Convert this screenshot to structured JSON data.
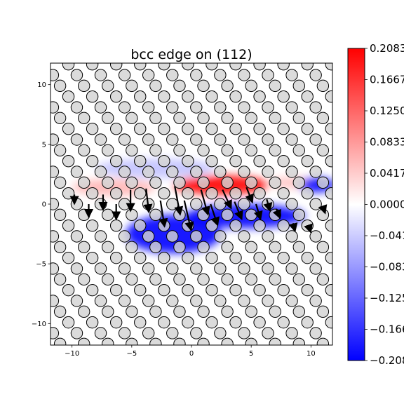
{
  "chart_data": {
    "type": "heatmap",
    "title": "bcc edge on (112)",
    "xlabel": "",
    "ylabel": "",
    "xlim": [
      -11.8,
      11.8
    ],
    "ylim": [
      -11.8,
      11.8
    ],
    "x_ticks": [
      -10,
      -5,
      0,
      5,
      10
    ],
    "y_ticks": [
      10,
      5,
      0,
      -5,
      -10
    ],
    "grid": false,
    "colormap": "bwr",
    "color_range": [
      -0.2083,
      0.2083
    ],
    "colorbar_ticks": [
      "0.2083",
      "0.1667",
      "0.1250",
      "0.0833",
      "0.0417",
      "0.0000",
      "-0.0417",
      "-0.0833",
      "-0.1250",
      "-0.1667",
      "-0.2083"
    ],
    "atoms": {
      "lattice_spacing_x": 2.0,
      "lattice_spacing_y": 0.9,
      "row_shift": 0.7,
      "fill": "#d3d3d3",
      "edge": "#000000"
    },
    "strain_regions": [
      {
        "x": 2.5,
        "y": 1.6,
        "rx": 4.0,
        "ry": 0.8,
        "value": 0.2083
      },
      {
        "x": -6.5,
        "y": 1.4,
        "rx": 3.5,
        "ry": 0.7,
        "value": 0.06
      },
      {
        "x": 8.5,
        "y": 1.8,
        "rx": 2.0,
        "ry": 0.5,
        "value": 0.05
      },
      {
        "x": 4.5,
        "y": -1.0,
        "rx": 5.0,
        "ry": 1.0,
        "value": -0.2083
      },
      {
        "x": -1.5,
        "y": -2.5,
        "rx": 4.0,
        "ry": 1.6,
        "value": -0.2083
      },
      {
        "x": 10.5,
        "y": 1.6,
        "rx": 1.5,
        "ry": 0.6,
        "value": -0.2083
      },
      {
        "x": -3.0,
        "y": 3.0,
        "rx": 5.0,
        "ry": 0.8,
        "value": -0.05
      }
    ],
    "displacement_arrows": [
      {
        "x": -9.8,
        "y": 0.8,
        "dx": 0.0,
        "dy": -0.5
      },
      {
        "x": -8.6,
        "y": 0.0,
        "dx": 0.0,
        "dy": -0.8
      },
      {
        "x": -7.4,
        "y": 0.8,
        "dx": 0.0,
        "dy": -1.0
      },
      {
        "x": -6.3,
        "y": 0.0,
        "dx": 0.0,
        "dy": -1.0
      },
      {
        "x": -5.1,
        "y": 1.2,
        "dx": 0.0,
        "dy": -1.5
      },
      {
        "x": -3.8,
        "y": 1.3,
        "dx": 0.2,
        "dy": -1.7
      },
      {
        "x": -2.6,
        "y": 0.3,
        "dx": 0.3,
        "dy": -1.9
      },
      {
        "x": -1.4,
        "y": 1.5,
        "dx": 0.4,
        "dy": -2.1
      },
      {
        "x": -0.6,
        "y": 0.3,
        "dx": 0.5,
        "dy": -2.2
      },
      {
        "x": 0.8,
        "y": 1.2,
        "dx": 0.5,
        "dy": -1.8
      },
      {
        "x": 1.6,
        "y": 0.0,
        "dx": 0.5,
        "dy": -1.5
      },
      {
        "x": 2.6,
        "y": 1.2,
        "dx": 0.6,
        "dy": -1.3
      },
      {
        "x": 3.6,
        "y": 0.2,
        "dx": 0.5,
        "dy": -1.2
      },
      {
        "x": 4.6,
        "y": 1.4,
        "dx": 0.4,
        "dy": -1.0
      },
      {
        "x": 5.4,
        "y": 0.0,
        "dx": 0.3,
        "dy": -1.0
      },
      {
        "x": 6.3,
        "y": 0.4,
        "dx": 0.2,
        "dy": -0.7
      },
      {
        "x": 7.1,
        "y": -0.4,
        "dx": 0.2,
        "dy": -0.5
      },
      {
        "x": 8.5,
        "y": -1.6,
        "dx": 0.1,
        "dy": -0.4
      },
      {
        "x": 9.8,
        "y": -1.8,
        "dx": 0.1,
        "dy": -0.3
      },
      {
        "x": 11.0,
        "y": -0.2,
        "dx": 0.1,
        "dy": -0.3
      }
    ]
  }
}
